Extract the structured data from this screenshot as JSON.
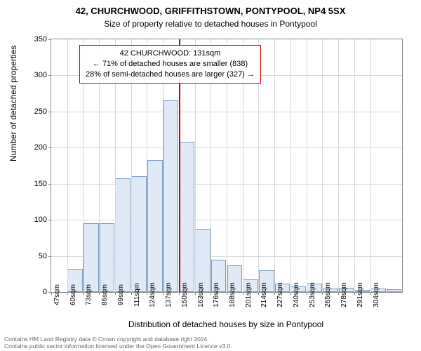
{
  "header": {
    "title": "42, CHURCHWOOD, GRIFFITHSTOWN, PONTYPOOL, NP4 5SX",
    "subtitle": "Size of property relative to detached houses in Pontypool"
  },
  "chart": {
    "type": "histogram",
    "ylim": [
      0,
      350
    ],
    "ytick_step": 50,
    "yticks": [
      0,
      50,
      100,
      150,
      200,
      250,
      300,
      350
    ],
    "xticks": [
      "47sqm",
      "60sqm",
      "73sqm",
      "86sqm",
      "99sqm",
      "111sqm",
      "124sqm",
      "137sqm",
      "150sqm",
      "163sqm",
      "176sqm",
      "188sqm",
      "201sqm",
      "214sqm",
      "227sqm",
      "240sqm",
      "253sqm",
      "265sqm",
      "278sqm",
      "291sqm",
      "304sqm"
    ],
    "values": [
      0,
      32,
      95,
      95,
      158,
      160,
      183,
      265,
      208,
      88,
      45,
      37,
      18,
      30,
      12,
      8,
      12,
      5,
      6,
      3,
      5,
      4
    ],
    "bar_color": "#e0eaf6",
    "bar_border": "#7a9cc6",
    "grid_color": "#d8d8d8",
    "background_color": "#ffffff",
    "marker_x_index": 8.0,
    "marker_color": "#cc0000",
    "ylabel": "Number of detached properties",
    "xlabel": "Distribution of detached houses by size in Pontypool",
    "label_fontsize": 12,
    "title_fontsize": 13
  },
  "annotation": {
    "line1": "42 CHURCHWOOD: 131sqm",
    "line2": "← 71% of detached houses are smaller (838)",
    "line3": "28% of semi-detached houses are larger (327) →"
  },
  "footer": {
    "line1": "Contains HM Land Registry data © Crown copyright and database right 2024.",
    "line2": "Contains public sector information licensed under the Open Government Licence v3.0."
  }
}
